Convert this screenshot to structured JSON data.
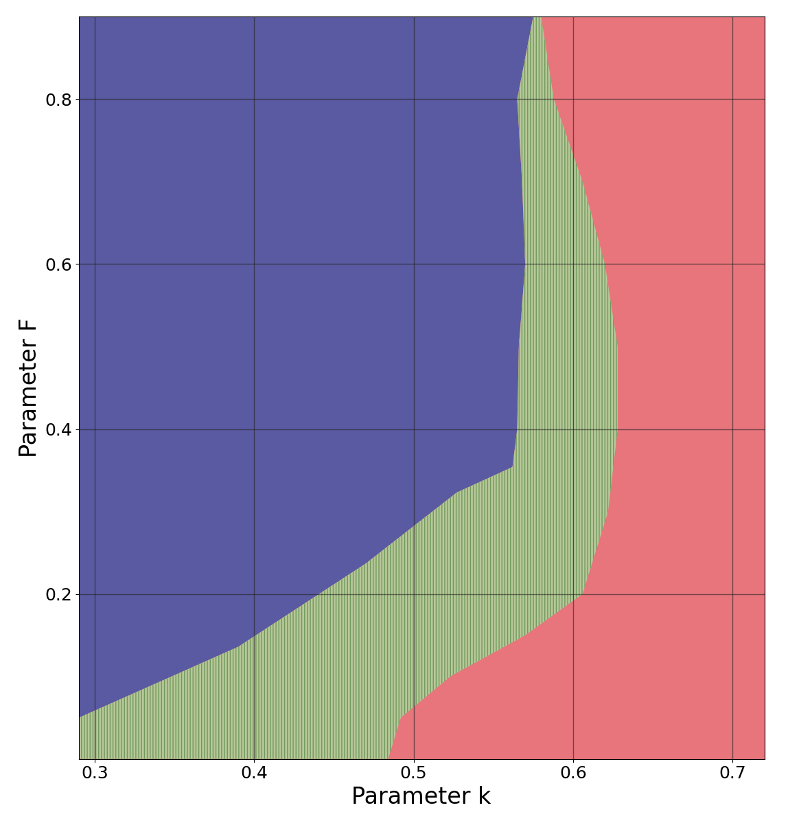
{
  "chart_data": {
    "type": "region_map",
    "xlabel": "Parameter k",
    "ylabel": "Parameter F",
    "xlim": [
      0.29,
      0.72
    ],
    "ylim": [
      0.0,
      0.9
    ],
    "xticks": [
      0.3,
      0.4,
      0.5,
      0.6,
      0.7
    ],
    "yticks": [
      0.2,
      0.4,
      0.6,
      0.8
    ],
    "grid": true,
    "color": "#e8757c",
    "regions": [
      {
        "color": "#5a5aa2",
        "x": [
          0.29,
          0.575,
          0.565,
          0.568,
          0.57,
          0.566,
          0.565,
          0.562,
          0.527,
          0.47,
          0.39,
          0.29
        ],
        "y": [
          0.9,
          0.9,
          0.8,
          0.7,
          0.6,
          0.5,
          0.4,
          0.354,
          0.323,
          0.237,
          0.136,
          0.05
        ]
      },
      {
        "color": "#b8c79a",
        "x": [
          0.29,
          0.39,
          0.47,
          0.527,
          0.562,
          0.565,
          0.566,
          0.57,
          0.568,
          0.565,
          0.575,
          0.58,
          0.588,
          0.606,
          0.62,
          0.628,
          0.628,
          0.622,
          0.606,
          0.57,
          0.523,
          0.492,
          0.484,
          0.29
        ],
        "y": [
          0.05,
          0.136,
          0.237,
          0.323,
          0.354,
          0.4,
          0.5,
          0.6,
          0.7,
          0.8,
          0.9,
          0.9,
          0.8,
          0.7,
          0.6,
          0.5,
          0.4,
          0.3,
          0.2,
          0.15,
          0.1,
          0.05,
          0.0,
          0.0
        ]
      }
    ]
  }
}
